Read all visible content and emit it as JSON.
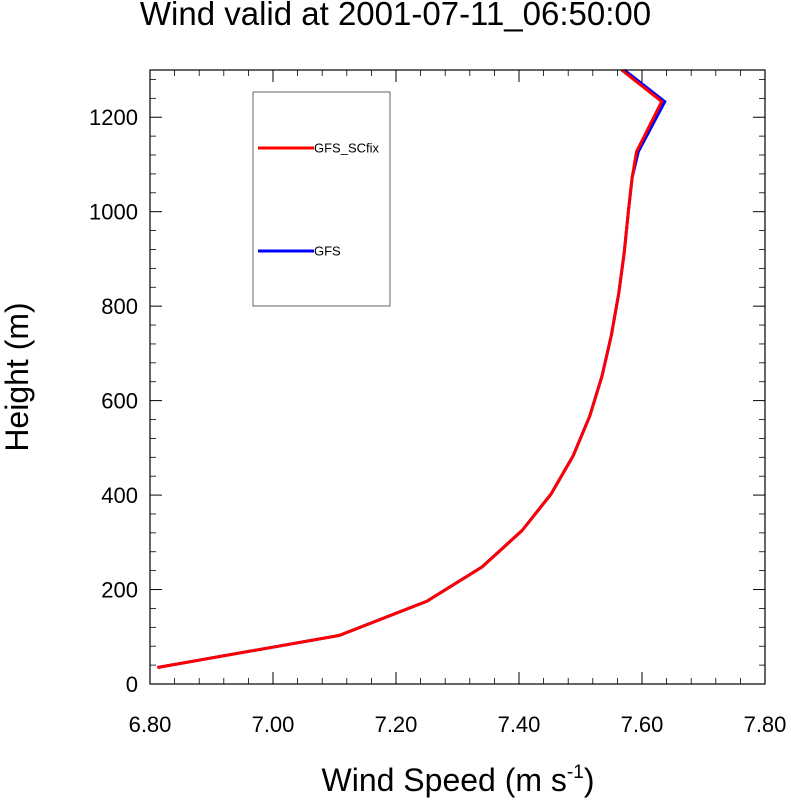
{
  "chart_data": {
    "type": "line",
    "title": "Wind valid at 2001-07-11_06:50:00",
    "xlabel": "Wind Speed (m s",
    "xlabel_superscript": "-1",
    "xlabel_suffix": ")",
    "ylabel": "Height (m)",
    "xlim": [
      6.8,
      7.8
    ],
    "ylim": [
      0,
      1300
    ],
    "xticks": [
      "6.80",
      "7.00",
      "7.20",
      "7.40",
      "7.60",
      "7.80"
    ],
    "yticks": [
      "0",
      "200",
      "400",
      "600",
      "800",
      "1000",
      "1200"
    ],
    "grid": false,
    "legend_position": "top-left",
    "series": [
      {
        "name": "GFS_SCfix",
        "color": "#ff0000",
        "points": [
          [
            6.812,
            35
          ],
          [
            7.108,
            103
          ],
          [
            7.25,
            175
          ],
          [
            7.34,
            248
          ],
          [
            7.405,
            325
          ],
          [
            7.452,
            402
          ],
          [
            7.488,
            483
          ],
          [
            7.515,
            567
          ],
          [
            7.535,
            652
          ],
          [
            7.55,
            738
          ],
          [
            7.562,
            825
          ],
          [
            7.571,
            913
          ],
          [
            7.578,
            1003
          ],
          [
            7.584,
            1073
          ],
          [
            7.591,
            1127
          ],
          [
            7.632,
            1233
          ],
          [
            7.567,
            1300
          ]
        ]
      },
      {
        "name": "GFS",
        "color": "#0000ff",
        "points": [
          [
            6.812,
            35
          ],
          [
            7.108,
            103
          ],
          [
            7.25,
            175
          ],
          [
            7.34,
            248
          ],
          [
            7.405,
            325
          ],
          [
            7.452,
            402
          ],
          [
            7.488,
            483
          ],
          [
            7.515,
            567
          ],
          [
            7.535,
            652
          ],
          [
            7.55,
            738
          ],
          [
            7.562,
            825
          ],
          [
            7.571,
            913
          ],
          [
            7.578,
            1003
          ],
          [
            7.584,
            1073
          ],
          [
            7.594,
            1127
          ],
          [
            7.637,
            1233
          ],
          [
            7.571,
            1300
          ]
        ]
      }
    ]
  }
}
